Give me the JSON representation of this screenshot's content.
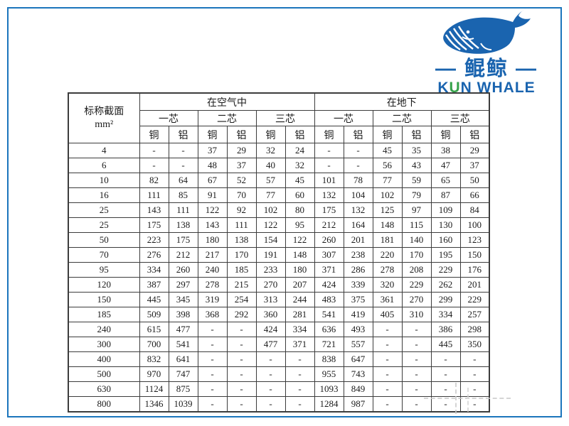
{
  "colors": {
    "brand_blue": "#1a64af",
    "accent_green": "#35a24a",
    "frame_blue": "#1b75bc",
    "table_line": "#3c3c3c"
  },
  "logo": {
    "whale_icon": "whale-icon",
    "brand_cn": "— 鲲鲸 —",
    "brand_en": {
      "prefix": "K",
      "accent": "U",
      "suffix": "N WHALE"
    }
  },
  "table": {
    "corner_header_line1": "标称截面",
    "corner_header_line2": "mm²",
    "group_headers": [
      "在空气中",
      "在地下"
    ],
    "core_headers": [
      "一芯",
      "二芯",
      "三芯",
      "一芯",
      "二芯",
      "三芯"
    ],
    "material_headers": [
      "铜",
      "铝",
      "铜",
      "铝",
      "铜",
      "铝",
      "铜",
      "铝",
      "铜",
      "铝",
      "铜",
      "铝"
    ],
    "rows": [
      {
        "label": "4",
        "values": [
          "-",
          "-",
          "37",
          "29",
          "32",
          "24",
          "-",
          "-",
          "45",
          "35",
          "38",
          "29"
        ]
      },
      {
        "label": "6",
        "values": [
          "-",
          "-",
          "48",
          "37",
          "40",
          "32",
          "-",
          "-",
          "56",
          "43",
          "47",
          "37"
        ]
      },
      {
        "label": "10",
        "values": [
          "82",
          "64",
          "67",
          "52",
          "57",
          "45",
          "101",
          "78",
          "77",
          "59",
          "65",
          "50"
        ]
      },
      {
        "label": "16",
        "values": [
          "111",
          "85",
          "91",
          "70",
          "77",
          "60",
          "132",
          "104",
          "102",
          "79",
          "87",
          "66"
        ]
      },
      {
        "label": "25",
        "values": [
          "143",
          "111",
          "122",
          "92",
          "102",
          "80",
          "175",
          "132",
          "125",
          "97",
          "109",
          "84"
        ]
      },
      {
        "label": "25",
        "values": [
          "175",
          "138",
          "143",
          "111",
          "122",
          "95",
          "212",
          "164",
          "148",
          "115",
          "130",
          "100"
        ]
      },
      {
        "label": "50",
        "values": [
          "223",
          "175",
          "180",
          "138",
          "154",
          "122",
          "260",
          "201",
          "181",
          "140",
          "160",
          "123"
        ]
      },
      {
        "label": "70",
        "values": [
          "276",
          "212",
          "217",
          "170",
          "191",
          "148",
          "307",
          "238",
          "220",
          "170",
          "195",
          "150"
        ]
      },
      {
        "label": "95",
        "values": [
          "334",
          "260",
          "240",
          "185",
          "233",
          "180",
          "371",
          "286",
          "278",
          "208",
          "229",
          "176"
        ]
      },
      {
        "label": "120",
        "values": [
          "387",
          "297",
          "278",
          "215",
          "270",
          "207",
          "424",
          "339",
          "320",
          "229",
          "262",
          "201"
        ]
      },
      {
        "label": "150",
        "values": [
          "445",
          "345",
          "319",
          "254",
          "313",
          "244",
          "483",
          "375",
          "361",
          "270",
          "299",
          "229"
        ]
      },
      {
        "label": "185",
        "values": [
          "509",
          "398",
          "368",
          "292",
          "360",
          "281",
          "541",
          "419",
          "405",
          "310",
          "334",
          "257"
        ]
      },
      {
        "label": "240",
        "values": [
          "615",
          "477",
          "-",
          "-",
          "424",
          "334",
          "636",
          "493",
          "-",
          "-",
          "386",
          "298"
        ]
      },
      {
        "label": "300",
        "values": [
          "700",
          "541",
          "-",
          "-",
          "477",
          "371",
          "721",
          "557",
          "-",
          "-",
          "445",
          "350"
        ]
      },
      {
        "label": "400",
        "values": [
          "832",
          "641",
          "-",
          "-",
          "-",
          "-",
          "838",
          "647",
          "-",
          "-",
          "-",
          "-"
        ]
      },
      {
        "label": "500",
        "values": [
          "970",
          "747",
          "-",
          "-",
          "-",
          "-",
          "955",
          "743",
          "-",
          "-",
          "-",
          "-"
        ]
      },
      {
        "label": "630",
        "values": [
          "1124",
          "875",
          "-",
          "-",
          "-",
          "-",
          "1093",
          "849",
          "-",
          "-",
          "-",
          "-"
        ]
      },
      {
        "label": "800",
        "values": [
          "1346",
          "1039",
          "-",
          "-",
          "-",
          "-",
          "1284",
          "987",
          "-",
          "-",
          "-",
          "-"
        ]
      }
    ]
  }
}
